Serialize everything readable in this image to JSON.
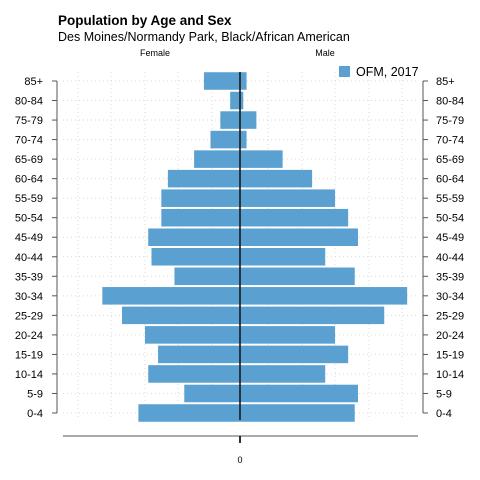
{
  "chart_data": {
    "type": "bar",
    "orientation": "horizontal-diverging",
    "title": "Population by Age and Sex",
    "subtitle": "Des Moines/Normandy Park, Black/African American",
    "left_group_label": "Female",
    "right_group_label": "Male",
    "x_tick_labels": [
      "0"
    ],
    "xlim": [
      -54,
      54
    ],
    "grid": true,
    "legend_position": "top-right",
    "bar_color": "#5aa0d0",
    "series": [
      {
        "name": "OFM, 2017"
      }
    ],
    "categories": [
      "0-4",
      "5-9",
      "10-14",
      "15-19",
      "20-24",
      "25-29",
      "30-34",
      "35-39",
      "40-44",
      "45-49",
      "50-54",
      "55-59",
      "60-64",
      "65-69",
      "70-74",
      "75-79",
      "80-84",
      "85+"
    ],
    "female": [
      31,
      17,
      28,
      25,
      29,
      36,
      42,
      20,
      27,
      28,
      24,
      24,
      22,
      14,
      9,
      6,
      3,
      11
    ],
    "male": [
      35,
      36,
      26,
      33,
      29,
      44,
      51,
      35,
      26,
      36,
      33,
      29,
      22,
      13,
      2,
      5,
      1,
      2
    ]
  }
}
